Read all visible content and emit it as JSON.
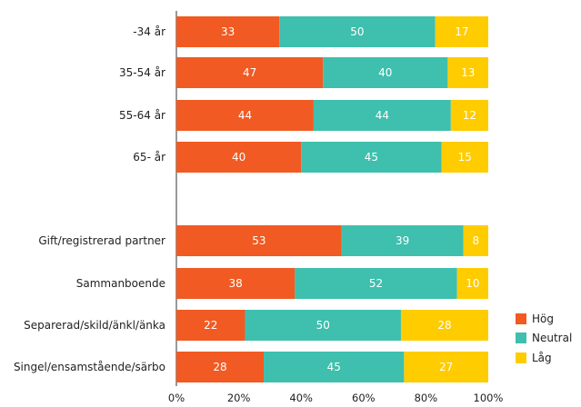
{
  "chart_data": {
    "type": "bar",
    "orientation": "horizontal",
    "stacked": true,
    "title": "",
    "xlabel": "",
    "ylabel": "",
    "xlim": [
      0,
      100
    ],
    "x_ticks": [
      "0%",
      "20%",
      "40%",
      "60%",
      "80%",
      "100%"
    ],
    "legend_position": "right",
    "groups": [
      [
        "-34 år",
        "35-54 år",
        "55-64 år",
        "65- år"
      ],
      [
        "Gift/registrerad partner",
        "Sammanboende",
        "Separerad/skild/änkl/änka",
        "Singel/ensamstående/särbo"
      ]
    ],
    "categories": [
      "-34 år",
      "35-54 år",
      "55-64 år",
      "65- år",
      "Gift/registrerad partner",
      "Sammanboende",
      "Separerad/skild/änkl/änka",
      "Singel/ensamstående/särbo"
    ],
    "series": [
      {
        "name": "Hög",
        "color": "#f15a22",
        "values": [
          33,
          47,
          44,
          40,
          53,
          38,
          22,
          28
        ]
      },
      {
        "name": "Neutral",
        "color": "#3fbfad",
        "values": [
          50,
          40,
          44,
          45,
          39,
          52,
          50,
          45
        ]
      },
      {
        "name": "Låg",
        "color": "#ffcc00",
        "values": [
          17,
          13,
          12,
          15,
          8,
          10,
          28,
          27
        ]
      }
    ],
    "grid": false
  }
}
